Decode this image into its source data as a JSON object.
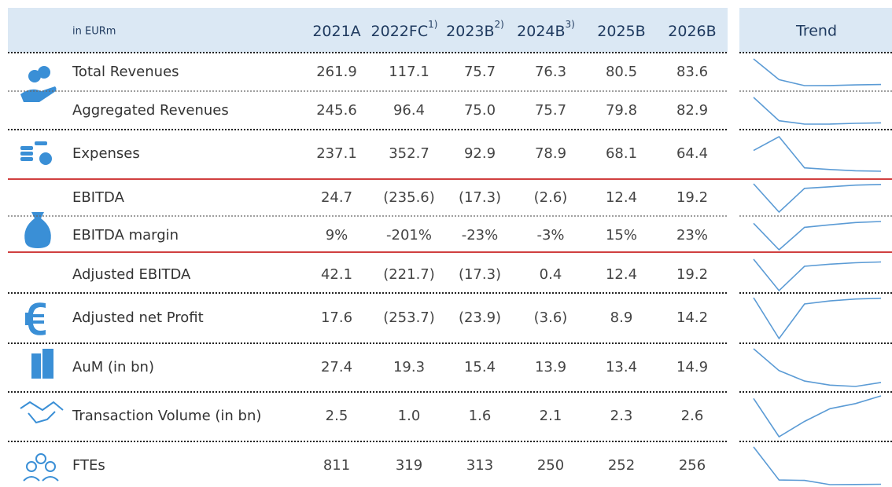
{
  "header": {
    "unit": "in EURm",
    "trend": "Trend",
    "columns": [
      {
        "label": "2021A"
      },
      {
        "label": "2022FC",
        "note": "1)"
      },
      {
        "label": "2023B",
        "note": "2)"
      },
      {
        "label": "2024B",
        "note": "3)"
      },
      {
        "label": "2025B"
      },
      {
        "label": "2026B"
      }
    ]
  },
  "rows": [
    {
      "label": "Total Revenues",
      "values": [
        261.9,
        117.1,
        75.7,
        76.3,
        80.5,
        83.6
      ],
      "value_labels": [
        "261.9",
        "117.1",
        "75.7",
        "76.3",
        "80.5",
        "83.6"
      ]
    },
    {
      "label": "Aggregated Revenues",
      "values": [
        245.6,
        96.4,
        75,
        75.7,
        79.8,
        82.9
      ],
      "value_labels": [
        "245.6",
        "96.4",
        "75.0",
        "75.7",
        "79.8",
        "82.9"
      ]
    },
    {
      "label": "Expenses",
      "values": [
        237.1,
        352.7,
        92.9,
        78.9,
        68.1,
        64.4
      ],
      "value_labels": [
        "237.1",
        "352.7",
        "92.9",
        "78.9",
        "68.1",
        "64.4"
      ]
    },
    {
      "label": "EBITDA",
      "values": [
        24.7,
        -235.6,
        -17.3,
        -2.6,
        12.4,
        19.2
      ],
      "value_labels": [
        "24.7",
        "(235.6)",
        "(17.3)",
        "(2.6)",
        "12.4",
        "19.2"
      ]
    },
    {
      "label": "EBITDA margin",
      "values": [
        9,
        -201,
        -23,
        -3,
        15,
        23
      ],
      "value_labels": [
        "9%",
        "-201%",
        "-23%",
        "-3%",
        "15%",
        "23%"
      ]
    },
    {
      "label": "Adjusted EBITDA",
      "values": [
        42.1,
        -221.7,
        -17.3,
        0.4,
        12.4,
        19.2
      ],
      "value_labels": [
        "42.1",
        "(221.7)",
        "(17.3)",
        "0.4",
        "12.4",
        "19.2"
      ]
    },
    {
      "label": "Adjusted net Profit",
      "values": [
        17.6,
        -253.7,
        -23.9,
        -3.6,
        8.9,
        14.2
      ],
      "value_labels": [
        "17.6",
        "(253.7)",
        "(23.9)",
        "(3.6)",
        "8.9",
        "14.2"
      ]
    },
    {
      "label": "AuM (in bn)",
      "values": [
        27.4,
        19.3,
        15.4,
        13.9,
        13.4,
        14.9
      ],
      "value_labels": [
        "27.4",
        "19.3",
        "15.4",
        "13.9",
        "13.4",
        "14.9"
      ]
    },
    {
      "label": "Transaction Volume (in bn)",
      "values": [
        2.5,
        1,
        1.6,
        2.1,
        2.3,
        2.6
      ],
      "value_labels": [
        "2.5",
        "1.0",
        "1.6",
        "2.1",
        "2.3",
        "2.6"
      ]
    },
    {
      "label": "FTEs",
      "values": [
        811,
        319,
        313,
        250,
        252,
        256
      ],
      "value_labels": [
        "811",
        "319",
        "313",
        "250",
        "252",
        "256"
      ]
    }
  ]
}
